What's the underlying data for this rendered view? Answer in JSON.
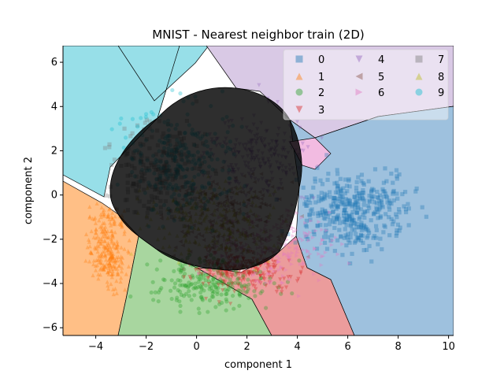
{
  "chart_data": {
    "type": "scatter",
    "title": "MNIST - Nearest neighbor train (2D)",
    "xlabel": "component 1",
    "ylabel": "component 2",
    "xlim": [
      -5.3,
      10.2
    ],
    "ylim": [
      -6.35,
      6.75
    ],
    "xticks": [
      -4,
      -2,
      0,
      2,
      4,
      6,
      8,
      10
    ],
    "yticks": [
      -6,
      -4,
      -2,
      0,
      2,
      4,
      6
    ],
    "xtick_labels": [
      "−4",
      "−2",
      "0",
      "2",
      "4",
      "6",
      "8",
      "10"
    ],
    "ytick_labels": [
      "−6",
      "−4",
      "−2",
      "0",
      "2",
      "4",
      "6"
    ],
    "grid": false,
    "legend_position": "top-right",
    "legend_columns": 3,
    "classes": [
      {
        "name": "0",
        "marker": "square",
        "color": "#1f77b4",
        "center": [
          6.4,
          -0.7
        ],
        "spread": [
          1.1,
          0.8
        ],
        "count": 380
      },
      {
        "name": "1",
        "marker": "triangle-up",
        "color": "#ff7f0e",
        "center": [
          -3.5,
          -2.3
        ],
        "spread": [
          0.35,
          0.9
        ],
        "count": 260
      },
      {
        "name": "2",
        "marker": "hexagon",
        "color": "#2ca02c",
        "center": [
          0.6,
          -4.0
        ],
        "spread": [
          1.2,
          0.55
        ],
        "count": 220
      },
      {
        "name": "3",
        "marker": "triangle-down",
        "color": "#d62728",
        "center": [
          1.8,
          -3.4
        ],
        "spread": [
          1.0,
          0.5
        ],
        "count": 220
      },
      {
        "name": "4",
        "marker": "triangle-down",
        "color": "#9467bd",
        "center": [
          2.4,
          1.8
        ],
        "spread": [
          1.0,
          1.0
        ],
        "count": 220
      },
      {
        "name": "5",
        "marker": "triangle-left",
        "color": "#8c564b",
        "center": [
          1.2,
          -1.0
        ],
        "spread": [
          1.2,
          1.0
        ],
        "count": 220
      },
      {
        "name": "6",
        "marker": "triangle-right",
        "color": "#e377c2",
        "center": [
          3.0,
          -2.2
        ],
        "spread": [
          1.2,
          0.8
        ],
        "count": 220
      },
      {
        "name": "7",
        "marker": "square",
        "color": "#7f7f7f",
        "center": [
          -1.5,
          1.2
        ],
        "spread": [
          0.9,
          1.1
        ],
        "count": 220
      },
      {
        "name": "8",
        "marker": "triangle-up",
        "color": "#bcbd22",
        "center": [
          0.4,
          -1.2
        ],
        "spread": [
          1.2,
          0.9
        ],
        "count": 220
      },
      {
        "name": "9",
        "marker": "circle",
        "color": "#17becf",
        "center": [
          -0.5,
          1.5
        ],
        "spread": [
          1.1,
          1.2
        ],
        "count": 260
      }
    ],
    "decision_regions": [
      {
        "class": "7",
        "color": "#c2c2c2"
      },
      {
        "class": "9",
        "color": "#97dfe8"
      },
      {
        "class": "4",
        "color": "#d9c9e5"
      },
      {
        "class": "0",
        "color": "#9ec1de"
      },
      {
        "class": "1",
        "color": "#ffbf86"
      },
      {
        "class": "2",
        "color": "#a8d69f"
      },
      {
        "class": "3",
        "color": "#eb9c9c"
      },
      {
        "class": "5",
        "color": "#c4a8a1"
      },
      {
        "class": "6",
        "color": "#f2bbe1"
      },
      {
        "class": "8",
        "color": "#ddde97"
      }
    ]
  }
}
